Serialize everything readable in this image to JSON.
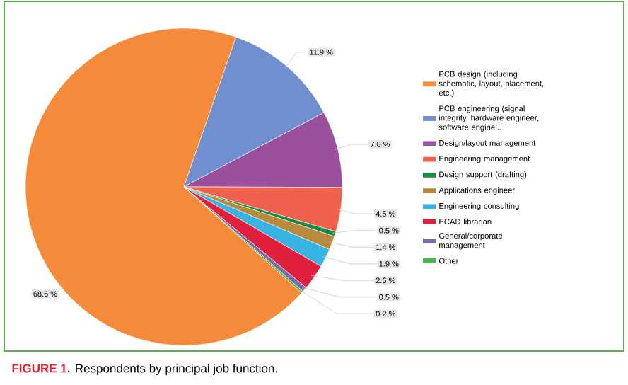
{
  "chart_data": {
    "type": "pie",
    "title": "**FIGURE 1.** Respondents by principal job function.",
    "categories": [
      "PCB design (including schematic, layout, placement, etc.)",
      "PCB engineering (signal integrity, hardware engineer, software engine...",
      "Design/layout management",
      "Engineering management",
      "Design support (drafting)",
      "Applications engineer",
      "Engineering consulting",
      "ECAD librarian",
      "General/corporate management",
      "Other"
    ],
    "values": [
      68.6,
      11.9,
      7.8,
      4.5,
      0.5,
      1.4,
      1.9,
      2.6,
      0.5,
      0.2
    ],
    "value_labels": [
      "68.6 %",
      "11.9 %",
      "7.8 %",
      "4.5 %",
      "0.5 %",
      "1.4 %",
      "1.9 %",
      "2.6 %",
      "0.5 %",
      "0.2 %"
    ],
    "colors": [
      "#f58a3a",
      "#6f8fcf",
      "#9a509c",
      "#f0624e",
      "#1b8a48",
      "#b88a3c",
      "#38b4e4",
      "#e0203c",
      "#7f6aa8",
      "#4cb84c"
    ],
    "legend": "right"
  }
}
